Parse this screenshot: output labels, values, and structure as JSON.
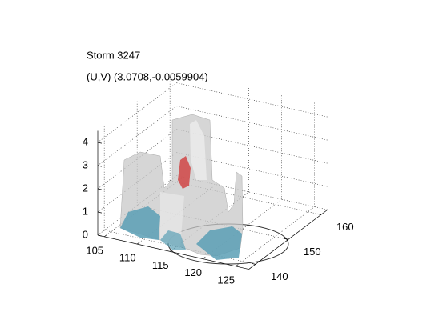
{
  "chart_data": {
    "type": "isosurface3d",
    "title": "Storm 3247",
    "subtitle": "(U,V) (3.0708,-0.0059904)",
    "xlim": [
      104,
      127
    ],
    "ylim": [
      138,
      162
    ],
    "zlim": [
      0,
      4.5
    ],
    "xticks": [
      105,
      110,
      115,
      120,
      125
    ],
    "yticks": [
      140,
      150,
      160
    ],
    "zticks": [
      0,
      1,
      2,
      3,
      4
    ],
    "grid": true
  }
}
